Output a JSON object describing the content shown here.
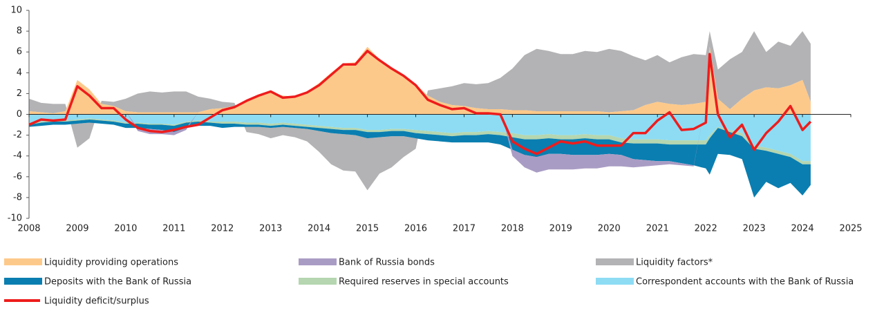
{
  "chart_data": {
    "type": "stacked-area",
    "x": [
      2008,
      2008.25,
      2008.5,
      2008.75,
      2009,
      2009.25,
      2009.5,
      2009.75,
      2010,
      2010.25,
      2010.5,
      2010.75,
      2011,
      2011.25,
      2011.5,
      2011.75,
      2012,
      2012.25,
      2012.5,
      2012.75,
      2013,
      2013.25,
      2013.5,
      2013.75,
      2014,
      2014.25,
      2014.5,
      2014.75,
      2015,
      2015.25,
      2015.5,
      2015.75,
      2016,
      2016.25,
      2016.5,
      2016.75,
      2017,
      2017.25,
      2017.5,
      2017.75,
      2018,
      2018.25,
      2018.5,
      2018.75,
      2019,
      2019.25,
      2019.5,
      2019.75,
      2020,
      2020.25,
      2020.5,
      2020.75,
      2021,
      2021.25,
      2021.5,
      2021.75,
      2022,
      2022.08,
      2022.25,
      2022.5,
      2022.75,
      2023,
      2023.25,
      2023.5,
      2023.75,
      2024,
      2024.17
    ],
    "series": [
      {
        "name": "Liquidity providing operations",
        "color": "#fdc98a",
        "values": [
          0.3,
          0.2,
          0.1,
          0.3,
          3.3,
          2.4,
          1.0,
          0.8,
          0.3,
          0.2,
          0.2,
          0.2,
          0.2,
          0.2,
          0.2,
          0.5,
          0.6,
          0.8,
          1.3,
          1.9,
          2.1,
          1.8,
          1.7,
          2.2,
          3.0,
          4.0,
          4.9,
          5.0,
          6.5,
          5.3,
          4.5,
          3.8,
          2.9,
          1.8,
          1.2,
          0.9,
          0.8,
          0.6,
          0.5,
          0.5,
          0.4,
          0.4,
          0.3,
          0.3,
          0.3,
          0.3,
          0.3,
          0.3,
          0.2,
          0.3,
          0.4,
          0.9,
          1.2,
          1.0,
          0.9,
          1.0,
          1.2,
          6.5,
          1.5,
          0.5,
          1.5,
          2.3,
          2.6,
          2.5,
          2.8,
          3.3,
          1.2
        ]
      },
      {
        "name": "Bank of Russia bonds",
        "color": "#a99cc4",
        "values": [
          0,
          0,
          0,
          0,
          0,
          0,
          0,
          0,
          0,
          -0.3,
          -0.5,
          -0.4,
          -0.3,
          -0.2,
          0,
          0,
          0,
          0,
          0,
          0,
          0,
          0,
          0,
          0,
          0,
          0,
          0,
          0,
          0,
          0,
          0,
          0,
          0,
          0,
          0,
          0,
          0,
          0,
          0,
          0,
          -0.6,
          -1.2,
          -1.5,
          -1.5,
          -1.5,
          -1.4,
          -1.3,
          -1.3,
          -1.2,
          -1.1,
          -0.8,
          -0.6,
          -0.4,
          -0.3,
          -0.2,
          -0.1,
          0,
          0,
          0,
          0,
          0,
          0,
          0,
          0,
          0,
          0,
          0
        ]
      },
      {
        "name": "Liquidity factors*",
        "color": "#b3b3b5",
        "values": [
          1.2,
          0.9,
          0.9,
          0.7,
          -2.3,
          -1.5,
          0.3,
          0.4,
          1.2,
          1.8,
          2.0,
          1.9,
          2.0,
          2.0,
          1.5,
          1.0,
          0.6,
          0.3,
          -0.5,
          -0.7,
          -1.0,
          -0.8,
          -0.9,
          -1.2,
          -2.0,
          -3.0,
          -3.5,
          -3.5,
          -5.0,
          -3.5,
          -3.0,
          -2.0,
          -1.0,
          0.5,
          1.3,
          1.8,
          2.2,
          2.3,
          2.5,
          3.0,
          4.0,
          5.3,
          6.0,
          5.8,
          5.5,
          5.5,
          5.8,
          5.7,
          6.1,
          5.8,
          5.2,
          4.3,
          4.5,
          4.0,
          4.6,
          4.8,
          4.5,
          1.5,
          2.8,
          4.8,
          4.5,
          5.7,
          3.4,
          4.5,
          3.8,
          4.7,
          5.6
        ]
      },
      {
        "name": "Deposits with the Bank of Russia",
        "color": "#0a7eb0",
        "values": [
          -0.2,
          -0.3,
          -0.3,
          -0.3,
          -0.3,
          -0.3,
          -0.3,
          -0.3,
          -0.4,
          -0.4,
          -0.4,
          -0.5,
          -0.6,
          -0.5,
          -0.4,
          -0.3,
          -0.4,
          -0.3,
          -0.2,
          -0.2,
          -0.2,
          -0.2,
          -0.2,
          -0.2,
          -0.3,
          -0.4,
          -0.4,
          -0.5,
          -0.6,
          -0.5,
          -0.5,
          -0.5,
          -0.5,
          -0.6,
          -0.6,
          -0.6,
          -0.7,
          -0.7,
          -0.8,
          -0.9,
          -1.2,
          -1.5,
          -1.7,
          -1.5,
          -1.4,
          -1.5,
          -1.6,
          -1.5,
          -1.4,
          -1.2,
          -1.5,
          -1.6,
          -1.7,
          -1.6,
          -1.8,
          -2.0,
          -2.3,
          -3.5,
          -2.5,
          -2.2,
          -2.2,
          -4.7,
          -3.0,
          -3.3,
          -2.5,
          -3.0,
          -2.0
        ]
      },
      {
        "name": "Required reserves in special accounts",
        "color": "#b5d6b0",
        "values": [
          -0.1,
          -0.1,
          -0.1,
          -0.1,
          -0.1,
          -0.1,
          -0.1,
          -0.1,
          -0.1,
          -0.1,
          -0.1,
          -0.1,
          -0.1,
          -0.1,
          -0.1,
          -0.1,
          -0.2,
          -0.2,
          -0.2,
          -0.2,
          -0.2,
          -0.2,
          -0.2,
          -0.2,
          -0.2,
          -0.2,
          -0.2,
          -0.2,
          -0.2,
          -0.2,
          -0.2,
          -0.2,
          -0.3,
          -0.3,
          -0.3,
          -0.3,
          -0.3,
          -0.3,
          -0.3,
          -0.3,
          -0.4,
          -0.4,
          -0.4,
          -0.4,
          -0.4,
          -0.4,
          -0.4,
          -0.4,
          -0.4,
          -0.4,
          -0.4,
          -0.4,
          -0.4,
          -0.4,
          -0.4,
          -0.4,
          -0.4,
          -0.3,
          -0.1,
          -0.2,
          -0.3,
          -0.3,
          -0.3,
          -0.3,
          -0.3,
          -0.3,
          -0.3
        ]
      },
      {
        "name": "Correspondent accounts with the Bank of Russia",
        "color": "#8ddcf4",
        "values": [
          -0.9,
          -0.7,
          -0.6,
          -0.6,
          -0.5,
          -0.4,
          -0.5,
          -0.6,
          -0.8,
          -0.8,
          -0.9,
          -0.9,
          -1.0,
          -0.7,
          -0.6,
          -0.7,
          -0.7,
          -0.7,
          -0.8,
          -0.8,
          -0.9,
          -0.8,
          -0.9,
          -1.0,
          -1.1,
          -1.2,
          -1.3,
          -1.3,
          -1.5,
          -1.5,
          -1.4,
          -1.4,
          -1.5,
          -1.6,
          -1.7,
          -1.8,
          -1.7,
          -1.7,
          -1.6,
          -1.7,
          -1.8,
          -2.0,
          -2.0,
          -1.9,
          -2.0,
          -2.0,
          -1.9,
          -2.0,
          -2.0,
          -2.3,
          -2.4,
          -2.4,
          -2.4,
          -2.5,
          -2.5,
          -2.5,
          -2.5,
          -2.0,
          -1.2,
          -1.5,
          -1.8,
          -3.0,
          -3.2,
          -3.5,
          -3.8,
          -4.5,
          -4.5
        ]
      },
      {
        "name": "Liquidity deficit/surplus",
        "color": "#ee1c1c",
        "type": "line",
        "values": [
          -1.0,
          -0.5,
          -0.6,
          -0.5,
          2.7,
          1.8,
          0.6,
          0.6,
          -0.5,
          -1.3,
          -1.6,
          -1.7,
          -1.5,
          -1.2,
          -1.0,
          -0.3,
          0.4,
          0.7,
          1.3,
          1.8,
          2.2,
          1.6,
          1.7,
          2.1,
          2.8,
          3.8,
          4.8,
          4.8,
          6.1,
          5.2,
          4.4,
          3.7,
          2.8,
          1.4,
          0.9,
          0.5,
          0.6,
          0.1,
          0.1,
          0.0,
          -2.6,
          -3.3,
          -3.8,
          -3.2,
          -2.6,
          -2.8,
          -2.6,
          -3.0,
          -3.0,
          -3.0,
          -1.8,
          -1.8,
          -0.6,
          0.2,
          -1.5,
          -1.4,
          -0.8,
          5.8,
          0.0,
          -2.2,
          -1.0,
          -3.4,
          -1.8,
          -0.7,
          0.8,
          -1.5,
          -0.7
        ]
      }
    ],
    "xlim": [
      2008,
      2025
    ],
    "xticks": [
      2008,
      2009,
      2010,
      2011,
      2012,
      2013,
      2014,
      2015,
      2016,
      2017,
      2018,
      2019,
      2020,
      2021,
      2022,
      2023,
      2024,
      2025
    ],
    "ylim": [
      -10,
      10
    ],
    "yticks": [
      -10,
      -8,
      -6,
      -4,
      -2,
      0,
      2,
      4,
      6,
      8,
      10
    ],
    "grid": false,
    "legend": "bottom"
  }
}
